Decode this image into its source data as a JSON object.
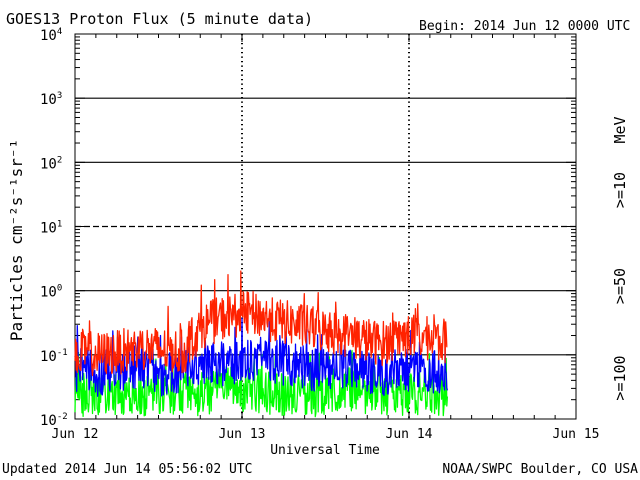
{
  "chart_data": {
    "type": "line",
    "title": "GOES13 Proton Flux (5 minute data)",
    "begin_label": "Begin: 2014 Jun 12 0000 UTC",
    "xlabel": "Universal Time",
    "ylabel": "Particles cm⁻²s⁻¹sr⁻¹",
    "unit_label": "MeV",
    "y_scale": "log",
    "ylim": [
      0.01,
      10000
    ],
    "y_ticks": [
      {
        "base": "10",
        "exp": "-2",
        "value": 0.01
      },
      {
        "base": "10",
        "exp": "-1",
        "value": 0.1
      },
      {
        "base": "10",
        "exp": "0",
        "value": 1
      },
      {
        "base": "10",
        "exp": "1",
        "value": 10
      },
      {
        "base": "10",
        "exp": "2",
        "value": 100
      },
      {
        "base": "10",
        "exp": "3",
        "value": 1000
      },
      {
        "base": "10",
        "exp": "4",
        "value": 10000
      }
    ],
    "x_ticks": [
      "Jun 12",
      "Jun 13",
      "Jun 14",
      "Jun 15"
    ],
    "xlim_days": [
      0,
      3
    ],
    "reference_lines": [
      {
        "value": 10,
        "style": "dashed"
      },
      {
        "value": 0.1,
        "style": "solid"
      },
      {
        "value": 1,
        "style": "solid"
      },
      {
        "value": 100,
        "style": "solid"
      },
      {
        "value": 1000,
        "style": "solid"
      }
    ],
    "data_end_days": 2.23,
    "series": [
      {
        "name": ">=10",
        "color": "#ff2200",
        "values": [
          0.12,
          0.1,
          0.11,
          0.13,
          0.12,
          0.11,
          0.3,
          0.4,
          0.45,
          0.35,
          0.3,
          0.25,
          0.22,
          0.18,
          0.15,
          0.2,
          0.18,
          0.16
        ]
      },
      {
        "name": ">=50",
        "color": "#0000ff",
        "values": [
          0.06,
          0.05,
          0.06,
          0.07,
          0.05,
          0.06,
          0.08,
          0.07,
          0.09,
          0.08,
          0.07,
          0.06,
          0.07,
          0.06,
          0.05,
          0.06,
          0.05,
          0.06
        ]
      },
      {
        "name": ">=100",
        "color": "#00ff00",
        "values": [
          0.025,
          0.022,
          0.024,
          0.023,
          0.025,
          0.024,
          0.026,
          0.03,
          0.028,
          0.025,
          0.026,
          0.024,
          0.03,
          0.027,
          0.025,
          0.022,
          0.026,
          0.024
        ]
      }
    ]
  },
  "footer": {
    "updated": "Updated 2014 Jun 14 05:56:02 UTC",
    "credit": "NOAA/SWPC Boulder, CO USA"
  }
}
